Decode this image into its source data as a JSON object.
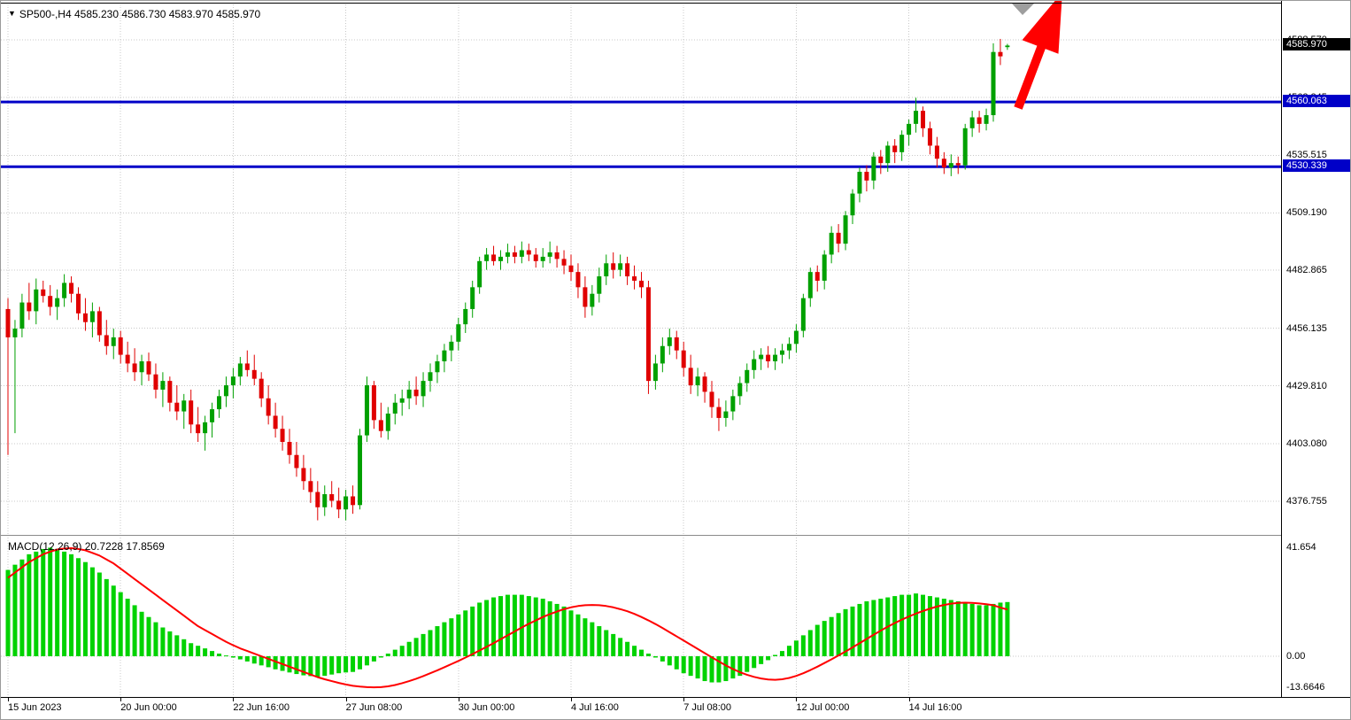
{
  "header": {
    "symbol_period": "SP500-,H4",
    "ohlc_values": "4585.230 4586.730 4583.970 4585.970",
    "dropdown_icon": "▼"
  },
  "indicator": {
    "label": "MACD(12,26,9)",
    "values": "20.7228 17.8569"
  },
  "colors": {
    "bull_candle": "#00A000",
    "bear_candle": "#E00000",
    "histogram": "#00D200",
    "signal_line": "#FF0000",
    "level_line": "#0000C8",
    "grid": "#C8C8C8",
    "price_tag_bg": "#000000",
    "level_tag_bg": "#0000C8",
    "cursor_triangle": "#9E9E9E"
  },
  "annotations": {
    "trend_arrow": {
      "direction": "up",
      "color": "#FF0000"
    }
  },
  "chart_data": [
    {
      "type": "candlestick",
      "title": "SP500- H4",
      "price_axis_ticks": [
        "4588.570",
        "4562.245",
        "4535.515",
        "4509.190",
        "4482.865",
        "4456.135",
        "4429.810",
        "4403.080",
        "4376.755"
      ],
      "y_range": [
        4365,
        4600
      ],
      "grid": "dotted",
      "current_price": "4585.970",
      "horizontal_levels": [
        {
          "price": 4560.063,
          "label": "4560.063"
        },
        {
          "price": 4530.339,
          "label": "4530.339"
        }
      ],
      "time_axis_labels": [
        {
          "text": "15 Jun 2023",
          "bar": 0
        },
        {
          "text": "20 Jun 00:00",
          "bar": 16
        },
        {
          "text": "22 Jun 16:00",
          "bar": 32
        },
        {
          "text": "27 Jun 08:00",
          "bar": 48
        },
        {
          "text": "30 Jun 00:00",
          "bar": 64
        },
        {
          "text": "4 Jul 16:00",
          "bar": 80
        },
        {
          "text": "7 Jul 08:00",
          "bar": 96
        },
        {
          "text": "12 Jul 00:00",
          "bar": 112
        },
        {
          "text": "14 Jul 16:00",
          "bar": 128
        }
      ],
      "candles_ohlc": [
        [
          4465,
          4470,
          4398,
          4452
        ],
        [
          4452,
          4460,
          4408,
          4456
        ],
        [
          4456,
          4472,
          4452,
          4468
        ],
        [
          4468,
          4477,
          4460,
          4464
        ],
        [
          4464,
          4479,
          4458,
          4474
        ],
        [
          4474,
          4478,
          4468,
          4471
        ],
        [
          4471,
          4476,
          4462,
          4466
        ],
        [
          4466,
          4474,
          4460,
          4470
        ],
        [
          4470,
          4481,
          4466,
          4477
        ],
        [
          4477,
          4480,
          4468,
          4472
        ],
        [
          4472,
          4475,
          4460,
          4463
        ],
        [
          4463,
          4470,
          4455,
          4459
        ],
        [
          4459,
          4468,
          4452,
          4464
        ],
        [
          4464,
          4466,
          4450,
          4453
        ],
        [
          4453,
          4460,
          4444,
          4448
        ],
        [
          4448,
          4456,
          4442,
          4452
        ],
        [
          4452,
          4455,
          4440,
          4444
        ],
        [
          4444,
          4450,
          4436,
          4440
        ],
        [
          4440,
          4447,
          4432,
          4436
        ],
        [
          4436,
          4444,
          4430,
          4441
        ],
        [
          4441,
          4445,
          4432,
          4435
        ],
        [
          4435,
          4440,
          4424,
          4428
        ],
        [
          4428,
          4436,
          4420,
          4432
        ],
        [
          4432,
          4434,
          4418,
          4422
        ],
        [
          4422,
          4430,
          4414,
          4418
        ],
        [
          4418,
          4426,
          4410,
          4423
        ],
        [
          4423,
          4428,
          4408,
          4412
        ],
        [
          4412,
          4420,
          4404,
          4408
        ],
        [
          4408,
          4416,
          4400,
          4413
        ],
        [
          4413,
          4422,
          4406,
          4419
        ],
        [
          4419,
          4428,
          4415,
          4425
        ],
        [
          4425,
          4434,
          4420,
          4430
        ],
        [
          4430,
          4438,
          4424,
          4434
        ],
        [
          4434,
          4443,
          4430,
          4440
        ],
        [
          4440,
          4446,
          4434,
          4437
        ],
        [
          4437,
          4444,
          4430,
          4433
        ],
        [
          4433,
          4436,
          4420,
          4424
        ],
        [
          4424,
          4430,
          4412,
          4416
        ],
        [
          4416,
          4422,
          4406,
          4410
        ],
        [
          4410,
          4416,
          4400,
          4404
        ],
        [
          4404,
          4410,
          4394,
          4398
        ],
        [
          4398,
          4404,
          4388,
          4392
        ],
        [
          4392,
          4398,
          4382,
          4386
        ],
        [
          4386,
          4392,
          4376,
          4381
        ],
        [
          4381,
          4386,
          4368,
          4374
        ],
        [
          4374,
          4384,
          4370,
          4380
        ],
        [
          4380,
          4386,
          4374,
          4377
        ],
        [
          4377,
          4383,
          4369,
          4373
        ],
        [
          4373,
          4382,
          4368,
          4379
        ],
        [
          4379,
          4384,
          4371,
          4375
        ],
        [
          4375,
          4410,
          4373,
          4407
        ],
        [
          4407,
          4434,
          4404,
          4430
        ],
        [
          4430,
          4432,
          4410,
          4414
        ],
        [
          4414,
          4422,
          4406,
          4409
        ],
        [
          4409,
          4420,
          4405,
          4417
        ],
        [
          4417,
          4426,
          4412,
          4422
        ],
        [
          4422,
          4428,
          4416,
          4424
        ],
        [
          4424,
          4432,
          4419,
          4428
        ],
        [
          4428,
          4434,
          4421,
          4425
        ],
        [
          4425,
          4436,
          4420,
          4432
        ],
        [
          4432,
          4440,
          4427,
          4436
        ],
        [
          4436,
          4444,
          4431,
          4441
        ],
        [
          4441,
          4449,
          4436,
          4446
        ],
        [
          4446,
          4453,
          4441,
          4450
        ],
        [
          4450,
          4461,
          4446,
          4458
        ],
        [
          4458,
          4468,
          4454,
          4465
        ],
        [
          4465,
          4478,
          4461,
          4475
        ],
        [
          4475,
          4489,
          4472,
          4487
        ],
        [
          4487,
          4493,
          4483,
          4490
        ],
        [
          4490,
          4494,
          4485,
          4487
        ],
        [
          4487,
          4492,
          4483,
          4489
        ],
        [
          4489,
          4495,
          4486,
          4491
        ],
        [
          4491,
          4494,
          4486,
          4489
        ],
        [
          4489,
          4496,
          4486,
          4492
        ],
        [
          4492,
          4495,
          4487,
          4490
        ],
        [
          4490,
          4493,
          4484,
          4487
        ],
        [
          4487,
          4493,
          4484,
          4489
        ],
        [
          4489,
          4496,
          4486,
          4491
        ],
        [
          4491,
          4494,
          4484,
          4488
        ],
        [
          4488,
          4492,
          4481,
          4485
        ],
        [
          4485,
          4490,
          4478,
          4482
        ],
        [
          4482,
          4486,
          4470,
          4475
        ],
        [
          4475,
          4480,
          4461,
          4466
        ],
        [
          4466,
          4476,
          4462,
          4472
        ],
        [
          4472,
          4484,
          4468,
          4480
        ],
        [
          4480,
          4490,
          4476,
          4486
        ],
        [
          4486,
          4491,
          4479,
          4483
        ],
        [
          4483,
          4490,
          4480,
          4486
        ],
        [
          4486,
          4489,
          4476,
          4480
        ],
        [
          4480,
          4485,
          4474,
          4478
        ],
        [
          4478,
          4482,
          4470,
          4475
        ],
        [
          4475,
          4478,
          4426,
          4432
        ],
        [
          4432,
          4444,
          4428,
          4440
        ],
        [
          4440,
          4452,
          4436,
          4448
        ],
        [
          4448,
          4456,
          4444,
          4452
        ],
        [
          4452,
          4455,
          4442,
          4446
        ],
        [
          4446,
          4450,
          4434,
          4438
        ],
        [
          4438,
          4444,
          4426,
          4430
        ],
        [
          4430,
          4438,
          4425,
          4434
        ],
        [
          4434,
          4436,
          4422,
          4427
        ],
        [
          4427,
          4432,
          4415,
          4420
        ],
        [
          4420,
          4424,
          4409,
          4415
        ],
        [
          4415,
          4423,
          4411,
          4418
        ],
        [
          4418,
          4428,
          4414,
          4425
        ],
        [
          4425,
          4434,
          4421,
          4431
        ],
        [
          4431,
          4440,
          4427,
          4437
        ],
        [
          4437,
          4446,
          4433,
          4442
        ],
        [
          4442,
          4447,
          4437,
          4444
        ],
        [
          4444,
          4448,
          4438,
          4441
        ],
        [
          4441,
          4447,
          4437,
          4444
        ],
        [
          4444,
          4449,
          4440,
          4446
        ],
        [
          4446,
          4452,
          4442,
          4449
        ],
        [
          4449,
          4458,
          4445,
          4455
        ],
        [
          4455,
          4472,
          4452,
          4470
        ],
        [
          4470,
          4484,
          4466,
          4482
        ],
        [
          4482,
          4485,
          4473,
          4478
        ],
        [
          4478,
          4492,
          4474,
          4490
        ],
        [
          4490,
          4503,
          4486,
          4500
        ],
        [
          4500,
          4504,
          4491,
          4495
        ],
        [
          4495,
          4510,
          4492,
          4508
        ],
        [
          4508,
          4520,
          4504,
          4518
        ],
        [
          4518,
          4530,
          4514,
          4528
        ],
        [
          4528,
          4531,
          4519,
          4524
        ],
        [
          4524,
          4537,
          4520,
          4535
        ],
        [
          4535,
          4538,
          4527,
          4532
        ],
        [
          4532,
          4542,
          4528,
          4540
        ],
        [
          4540,
          4543,
          4532,
          4537
        ],
        [
          4537,
          4547,
          4533,
          4545
        ],
        [
          4545,
          4552,
          4540,
          4550
        ],
        [
          4550,
          4562,
          4546,
          4556
        ],
        [
          4556,
          4558,
          4544,
          4548
        ],
        [
          4548,
          4551,
          4536,
          4540
        ],
        [
          4540,
          4544,
          4530,
          4534
        ],
        [
          4534,
          4537,
          4527,
          4530
        ],
        [
          4530,
          4536,
          4526,
          4532
        ],
        [
          4532,
          4535,
          4527,
          4531
        ],
        [
          4531,
          4550,
          4529,
          4548
        ],
        [
          4548,
          4556,
          4544,
          4553
        ],
        [
          4553,
          4556,
          4546,
          4550
        ],
        [
          4550,
          4557,
          4547,
          4554
        ],
        [
          4554,
          4587,
          4551,
          4583
        ],
        [
          4583,
          4589,
          4577,
          4581
        ],
        [
          4585.23,
          4586.73,
          4583.97,
          4585.97
        ]
      ]
    },
    {
      "type": "macd",
      "label": "MACD(12,26,9)",
      "macd_value": "20.7228",
      "signal_value": "17.8569",
      "axis_ticks": [
        "41.654",
        "0.00",
        "-13.6646"
      ],
      "histogram": [
        33,
        35,
        37,
        39,
        40,
        41,
        41.5,
        41,
        40,
        39,
        37.5,
        36,
        34,
        32,
        29.5,
        27,
        24.5,
        22,
        19.5,
        17,
        15,
        13,
        11,
        9.5,
        8,
        6.5,
        5,
        4,
        3,
        2,
        1,
        0.3,
        -0.5,
        -1.2,
        -2,
        -2.8,
        -3.5,
        -4.2,
        -5,
        -5.6,
        -6.2,
        -6.8,
        -7.3,
        -7.6,
        -7.8,
        -7.5,
        -7,
        -6.5,
        -6.2,
        -6,
        -5,
        -3.5,
        -2,
        -0.5,
        1,
        2.5,
        4,
        5.5,
        7,
        8.5,
        10,
        11.5,
        13,
        14.5,
        16,
        17.5,
        19,
        20.5,
        21.5,
        22.5,
        23,
        23.5,
        23.5,
        23.5,
        23,
        22.5,
        22,
        21,
        20,
        19,
        17.5,
        16,
        14.5,
        13,
        11.5,
        10,
        8.5,
        7,
        5.5,
        4,
        2.5,
        1,
        -0.5,
        -2,
        -3.5,
        -5,
        -6.5,
        -7.5,
        -8.5,
        -9.5,
        -10,
        -10,
        -9.5,
        -8.5,
        -7.5,
        -6,
        -4.5,
        -3,
        -1.5,
        0.5,
        2,
        4,
        6,
        8,
        10,
        12,
        13.5,
        15,
        16.5,
        18,
        19,
        20,
        21,
        21.5,
        22,
        22.5,
        23,
        23.5,
        23.5,
        24,
        23.5,
        23,
        22.5,
        22,
        21.5,
        21,
        20.5,
        20,
        19.5,
        19.5,
        20,
        20.5,
        20.72
      ],
      "signal": [
        30,
        32,
        34,
        36,
        37.5,
        39,
        40,
        40.8,
        41.2,
        41.3,
        41,
        40.5,
        39.5,
        38.5,
        37,
        35.5,
        33.5,
        31.5,
        29.5,
        27.5,
        25.5,
        23.5,
        21.5,
        19.5,
        17.5,
        15.5,
        13.5,
        11.5,
        10,
        8.5,
        7,
        5.5,
        4.2,
        3,
        2,
        1,
        0,
        -1,
        -2,
        -3,
        -4,
        -5,
        -6,
        -7,
        -8,
        -8.8,
        -9.5,
        -10.2,
        -10.8,
        -11.3,
        -11.6,
        -11.8,
        -11.9,
        -11.8,
        -11.5,
        -11,
        -10.3,
        -9.5,
        -8.6,
        -7.6,
        -6.5,
        -5.4,
        -4.2,
        -3,
        -1.8,
        -0.5,
        0.8,
        2.2,
        3.6,
        5,
        6.5,
        8,
        9.5,
        11,
        12.4,
        13.7,
        15,
        16.1,
        17.1,
        18,
        18.7,
        19.2,
        19.5,
        19.6,
        19.5,
        19.2,
        18.7,
        18,
        17.2,
        16.2,
        15,
        13.7,
        12.3,
        10.8,
        9.2,
        7.6,
        6,
        4.4,
        2.8,
        1.2,
        -0.4,
        -2,
        -3.5,
        -4.9,
        -6.1,
        -7.1,
        -7.9,
        -8.5,
        -8.9,
        -9,
        -8.8,
        -8.3,
        -7.5,
        -6.5,
        -5.3,
        -4,
        -2.6,
        -1.2,
        0.3,
        1.8,
        3.4,
        5,
        6.6,
        8.2,
        9.8,
        11.3,
        12.7,
        14,
        15.2,
        16.3,
        17.3,
        18.2,
        19,
        19.6,
        20.1,
        20.4,
        20.5,
        20.4,
        20.2,
        19.9,
        19.5,
        18.6,
        17.86
      ]
    }
  ]
}
